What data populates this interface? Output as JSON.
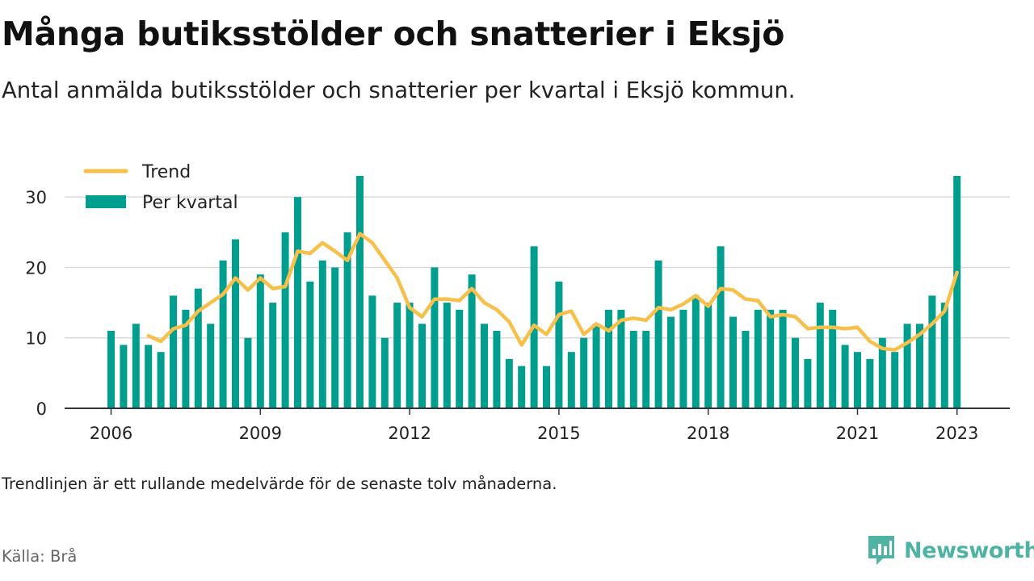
{
  "header": {
    "title": "Många butiksstölder och snatterier i Eksjö",
    "subtitle": "Antal anmälda butiksstölder och snatterier per kvartal i Eksjö kommun."
  },
  "footer": {
    "note": "Trendlinjen är ett rullande medelvärde för de senaste tolv månaderna.",
    "source": "Källa: Brå",
    "brand": "Newsworthy"
  },
  "colors": {
    "bar": "#009e8f",
    "trend": "#f7c04a",
    "grid": "#d9d9d9",
    "axis": "#333333",
    "brand": "#4fb3a4"
  },
  "chart_data": {
    "type": "bar",
    "x_start": "2006 Q1",
    "x_end": "2023 Q1",
    "x_ticks": [
      "2006",
      "2009",
      "2012",
      "2015",
      "2018",
      "2021",
      "2023"
    ],
    "y_ticks": [
      0,
      10,
      20,
      30
    ],
    "ylim": [
      0,
      33
    ],
    "grid": true,
    "legend_position": "top-left",
    "series": [
      {
        "name": "Per kvartal",
        "type": "bar",
        "values": [
          11,
          9,
          12,
          9,
          8,
          16,
          14,
          17,
          12,
          21,
          24,
          10,
          19,
          15,
          25,
          30,
          18,
          21,
          20,
          25,
          33,
          16,
          10,
          15,
          15,
          12,
          20,
          15,
          14,
          19,
          12,
          11,
          7,
          6,
          23,
          6,
          18,
          8,
          10,
          12,
          14,
          14,
          11,
          11,
          21,
          13,
          14,
          16,
          15,
          23,
          13,
          11,
          14,
          14,
          14,
          10,
          7,
          15,
          14,
          9,
          8,
          7,
          10,
          8,
          12,
          12,
          16,
          15,
          33
        ]
      },
      {
        "name": "Trend",
        "type": "line",
        "values": [
          null,
          null,
          null,
          10.3,
          9.5,
          11.3,
          11.8,
          13.8,
          15,
          16.2,
          18.5,
          16.8,
          18.5,
          17,
          17.3,
          22.3,
          22,
          23.5,
          22.3,
          21,
          24.8,
          23.5,
          21,
          18.5,
          14.3,
          13,
          15.5,
          15.5,
          15.3,
          17,
          15,
          14,
          12.3,
          9,
          11.8,
          10.5,
          13.3,
          13.8,
          10.5,
          12,
          11,
          12.5,
          12.8,
          12.5,
          14.3,
          14,
          14.8,
          16,
          14.5,
          17,
          16.8,
          15.5,
          15.3,
          13,
          13.3,
          13,
          11.3,
          11.5,
          11.5,
          11.3,
          11.5,
          9.5,
          8.5,
          8.3,
          9.3,
          10.5,
          12,
          13.8,
          19.3
        ]
      }
    ]
  }
}
